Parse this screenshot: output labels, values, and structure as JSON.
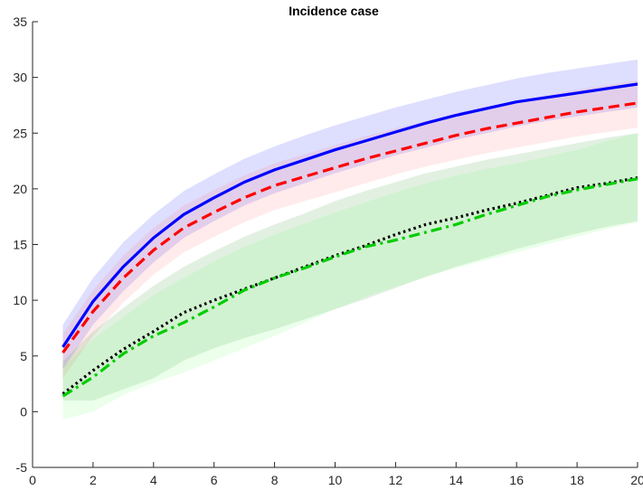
{
  "chart_data": {
    "type": "line",
    "title": "Incidence case",
    "xlabel": "",
    "ylabel": "",
    "xlim": [
      0,
      20
    ],
    "ylim": [
      -5,
      35
    ],
    "xticks": [
      0,
      2,
      4,
      6,
      8,
      10,
      12,
      14,
      16,
      18,
      20
    ],
    "yticks": [
      -5,
      0,
      5,
      10,
      15,
      20,
      25,
      30,
      35
    ],
    "grid": false,
    "legend": "none",
    "x": [
      1,
      2,
      3,
      4,
      5,
      6,
      7,
      8,
      9,
      10,
      11,
      12,
      13,
      14,
      15,
      16,
      17,
      18,
      19,
      20
    ],
    "series": [
      {
        "style": "solid",
        "color": "#0000ff",
        "band_color": "#0000ff",
        "values": [
          5.8,
          9.9,
          13.0,
          15.6,
          17.7,
          19.2,
          20.6,
          21.7,
          22.6,
          23.5,
          24.3,
          25.1,
          25.9,
          26.6,
          27.2,
          27.8,
          28.2,
          28.6,
          29.0,
          29.4
        ],
        "band_upper": [
          7.8,
          12.0,
          15.2,
          17.7,
          19.8,
          21.3,
          22.7,
          23.8,
          24.8,
          25.7,
          26.5,
          27.3,
          28.0,
          28.7,
          29.3,
          29.9,
          30.4,
          30.8,
          31.2,
          31.6
        ],
        "band_lower": [
          3.8,
          7.8,
          10.8,
          13.4,
          15.6,
          17.1,
          18.5,
          19.6,
          20.5,
          21.4,
          22.2,
          23.0,
          23.7,
          24.4,
          25.0,
          25.6,
          26.1,
          26.5,
          26.9,
          27.3
        ]
      },
      {
        "style": "dashed",
        "color": "#ff0000",
        "band_color": "#ff6666",
        "values": [
          5.3,
          9.0,
          12.0,
          14.5,
          16.5,
          17.9,
          19.2,
          20.3,
          21.1,
          21.9,
          22.7,
          23.4,
          24.1,
          24.8,
          25.4,
          25.9,
          26.4,
          26.9,
          27.3,
          27.7
        ],
        "band_upper": [
          7.0,
          10.9,
          14.0,
          16.5,
          18.5,
          19.9,
          21.2,
          22.3,
          23.1,
          23.9,
          24.7,
          25.4,
          26.1,
          26.8,
          27.4,
          27.9,
          28.4,
          28.9,
          29.3,
          29.7
        ],
        "band_lower": [
          3.0,
          6.8,
          9.8,
          12.3,
          14.3,
          15.7,
          17.0,
          18.1,
          18.9,
          19.7,
          20.5,
          21.3,
          22.0,
          22.6,
          23.2,
          23.7,
          24.2,
          24.7,
          25.1,
          25.5
        ]
      },
      {
        "style": "dotted",
        "color": "#000000",
        "band_color": "#228b22",
        "values": [
          1.6,
          3.7,
          5.6,
          7.2,
          8.9,
          10.0,
          11.0,
          12.0,
          13.0,
          14.0,
          14.9,
          15.9,
          16.8,
          17.4,
          18.1,
          18.7,
          19.4,
          20.1,
          20.5,
          21.0
        ],
        "band_upper": [
          4.5,
          7.2,
          9.3,
          11.3,
          13.0,
          14.4,
          15.7,
          16.8,
          17.8,
          18.9,
          19.8,
          20.6,
          21.4,
          22.0,
          22.6,
          23.1,
          23.6,
          24.1,
          24.6,
          25.0
        ],
        "band_lower": [
          1.0,
          1.0,
          2.0,
          3.0,
          4.6,
          5.7,
          6.6,
          7.4,
          8.3,
          9.2,
          10.1,
          11.1,
          12.1,
          13.0,
          13.8,
          14.6,
          15.3,
          16.0,
          16.6,
          17.1
        ]
      },
      {
        "style": "dashdot",
        "color": "#00cc00",
        "band_color": "#66ff66",
        "values": [
          1.4,
          3.1,
          5.2,
          6.8,
          8.0,
          9.4,
          10.9,
          12.0,
          12.9,
          13.9,
          14.8,
          15.4,
          16.1,
          16.8,
          17.7,
          18.5,
          19.3,
          19.9,
          20.4,
          20.9
        ],
        "band_upper": [
          4.0,
          6.5,
          8.5,
          10.5,
          12.0,
          13.5,
          14.8,
          15.9,
          16.9,
          17.9,
          18.8,
          19.7,
          20.5,
          21.2,
          21.8,
          22.3,
          22.9,
          23.5,
          24.3,
          25.0
        ],
        "band_lower": [
          -0.7,
          0.0,
          1.5,
          2.6,
          3.5,
          4.6,
          5.7,
          6.8,
          8.0,
          9.2,
          10.3,
          11.2,
          12.1,
          12.9,
          13.6,
          14.3,
          15.0,
          15.7,
          16.4,
          17.0
        ]
      }
    ]
  }
}
